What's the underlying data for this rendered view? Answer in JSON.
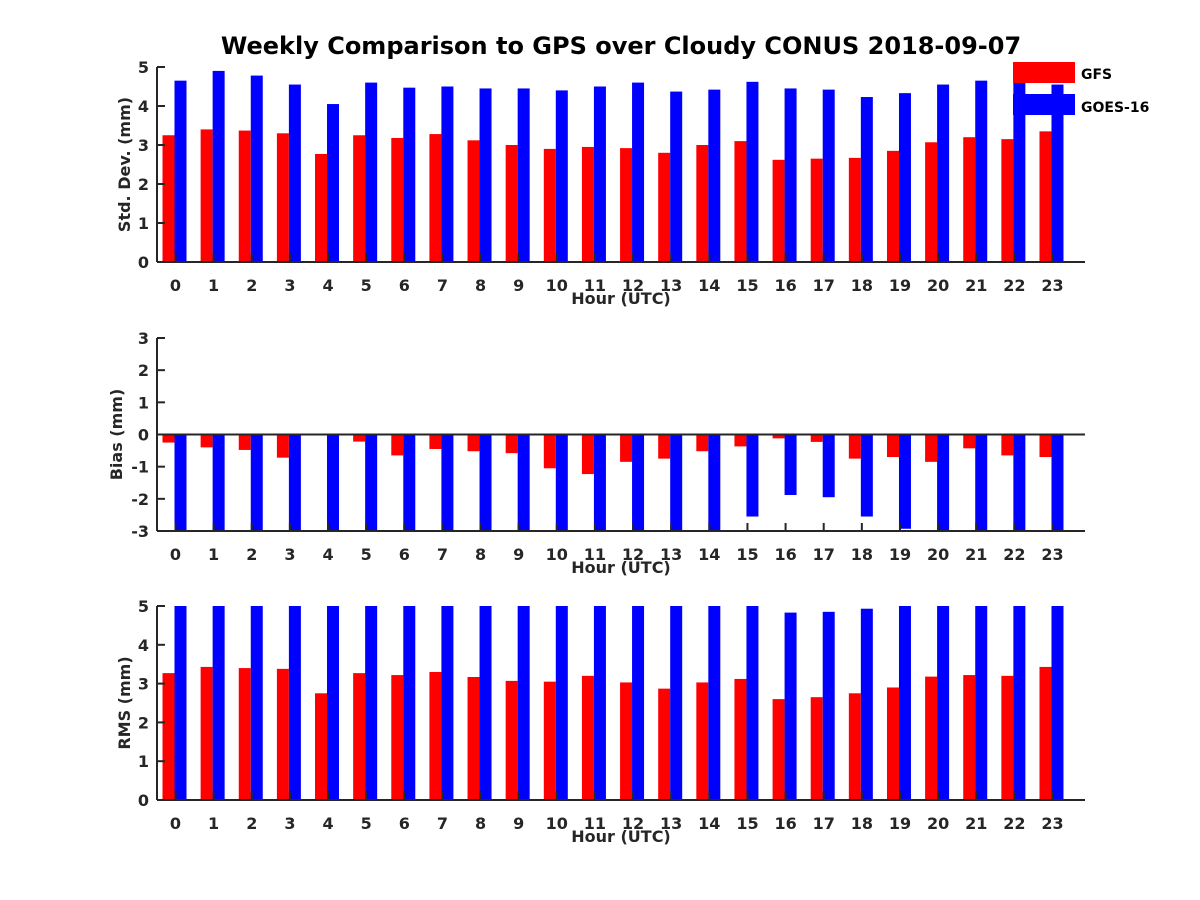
{
  "figure_title": "Weekly Comparison to GPS over Cloudy CONUS 2018-09-07",
  "legend": [
    {
      "label": "GFS",
      "color": "#ff0000"
    },
    {
      "label": "GOES-16",
      "color": "#0000ff"
    }
  ],
  "chart_data": [
    {
      "type": "bar",
      "title": "Weekly Comparison to GPS over Cloudy CONUS 2018-09-07",
      "xlabel": "Hour (UTC)",
      "ylabel": "Std. Dev. (mm)",
      "ylim": [
        0,
        5
      ],
      "yticks": [
        "0",
        "1",
        "2",
        "3",
        "4",
        "5"
      ],
      "categories": [
        "0",
        "1",
        "2",
        "3",
        "4",
        "5",
        "6",
        "7",
        "8",
        "9",
        "10",
        "11",
        "12",
        "13",
        "14",
        "15",
        "16",
        "17",
        "18",
        "19",
        "20",
        "21",
        "22",
        "23"
      ],
      "series": [
        {
          "name": "GFS",
          "color": "#ff0000",
          "values": [
            3.25,
            3.4,
            3.37,
            3.3,
            2.77,
            3.25,
            3.18,
            3.28,
            3.12,
            3.0,
            2.9,
            2.95,
            2.92,
            2.8,
            3.0,
            3.1,
            2.62,
            2.65,
            2.67,
            2.85,
            3.07,
            3.2,
            3.15,
            3.35
          ]
        },
        {
          "name": "GOES-16",
          "color": "#0000ff",
          "values": [
            4.65,
            4.9,
            4.78,
            4.55,
            4.05,
            4.6,
            4.47,
            4.5,
            4.45,
            4.45,
            4.4,
            4.5,
            4.6,
            4.37,
            4.42,
            4.62,
            4.45,
            4.42,
            4.23,
            4.33,
            4.55,
            4.65,
            4.62,
            4.55
          ]
        }
      ],
      "grid": false,
      "legend_position": "top-right"
    },
    {
      "type": "bar",
      "title": "",
      "xlabel": "Hour (UTC)",
      "ylabel": "Bias (mm)",
      "ylim": [
        -3,
        3
      ],
      "yticks": [
        "-3",
        "-2",
        "-1",
        "0",
        "1",
        "2",
        "3"
      ],
      "categories": [
        "0",
        "1",
        "2",
        "3",
        "4",
        "5",
        "6",
        "7",
        "8",
        "9",
        "10",
        "11",
        "12",
        "13",
        "14",
        "15",
        "16",
        "17",
        "18",
        "19",
        "20",
        "21",
        "22",
        "23"
      ],
      "series": [
        {
          "name": "GFS",
          "color": "#ff0000",
          "values": [
            -0.25,
            -0.4,
            -0.48,
            -0.72,
            0.0,
            -0.22,
            -0.65,
            -0.45,
            -0.52,
            -0.58,
            -1.05,
            -1.23,
            -0.85,
            -0.75,
            -0.52,
            -0.37,
            -0.12,
            -0.23,
            -0.75,
            -0.7,
            -0.85,
            -0.43,
            -0.65,
            -0.7
          ]
        },
        {
          "name": "GOES-16",
          "color": "#0000ff",
          "values": [
            -3.0,
            -3.0,
            -3.0,
            -3.0,
            -3.0,
            -3.0,
            -3.0,
            -3.0,
            -3.0,
            -3.0,
            -3.0,
            -3.0,
            -3.0,
            -3.0,
            -3.0,
            -2.55,
            -1.88,
            -1.95,
            -2.55,
            -2.93,
            -3.0,
            -3.0,
            -3.0,
            -3.0
          ]
        }
      ],
      "grid": false
    },
    {
      "type": "bar",
      "title": "",
      "xlabel": "Hour (UTC)",
      "ylabel": "RMS (mm)",
      "ylim": [
        0,
        5
      ],
      "yticks": [
        "0",
        "1",
        "2",
        "3",
        "4",
        "5"
      ],
      "categories": [
        "0",
        "1",
        "2",
        "3",
        "4",
        "5",
        "6",
        "7",
        "8",
        "9",
        "10",
        "11",
        "12",
        "13",
        "14",
        "15",
        "16",
        "17",
        "18",
        "19",
        "20",
        "21",
        "22",
        "23"
      ],
      "series": [
        {
          "name": "GFS",
          "color": "#ff0000",
          "values": [
            3.27,
            3.43,
            3.4,
            3.38,
            2.75,
            3.27,
            3.22,
            3.3,
            3.17,
            3.07,
            3.05,
            3.2,
            3.03,
            2.87,
            3.03,
            3.12,
            2.6,
            2.65,
            2.75,
            2.9,
            3.18,
            3.22,
            3.2,
            3.43
          ]
        },
        {
          "name": "GOES-16",
          "color": "#0000ff",
          "values": [
            5.0,
            5.0,
            5.0,
            5.0,
            5.0,
            5.0,
            5.0,
            5.0,
            5.0,
            5.0,
            5.0,
            5.0,
            5.0,
            5.0,
            5.0,
            5.0,
            4.83,
            4.85,
            4.93,
            5.0,
            5.0,
            5.0,
            5.0,
            5.0
          ]
        }
      ],
      "grid": false
    }
  ]
}
